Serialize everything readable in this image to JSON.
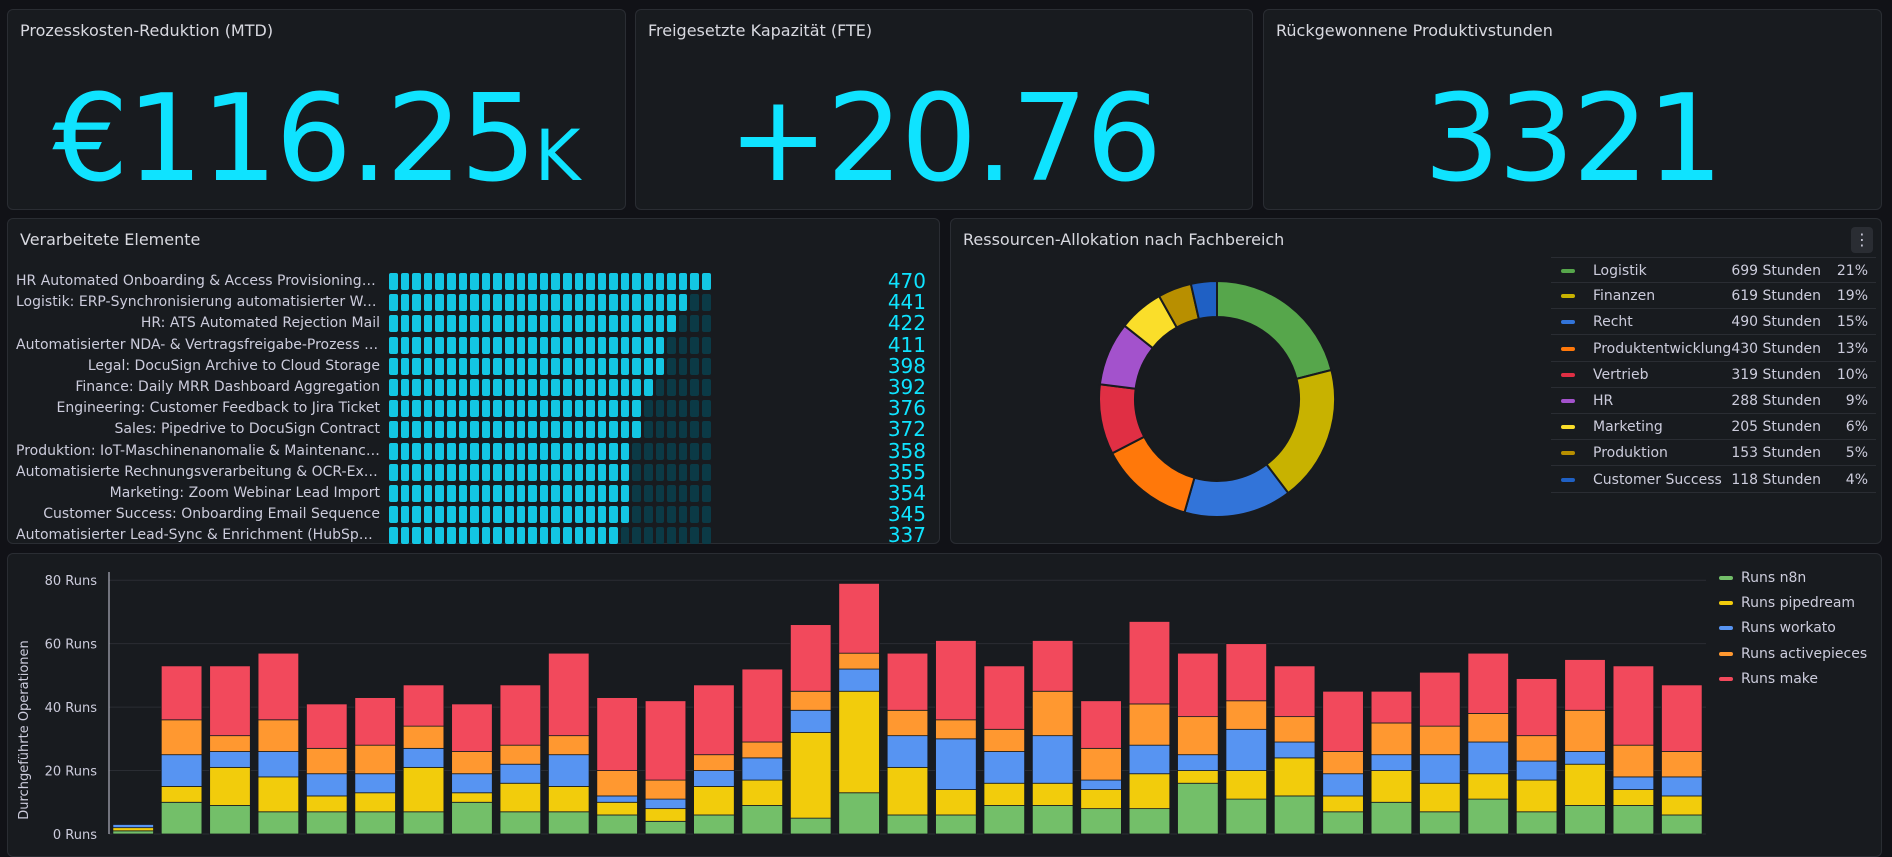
{
  "stats": [
    {
      "title": "Prozesskosten-Reduktion (MTD)",
      "value": "€116.25",
      "unit": "K"
    },
    {
      "title": "Freigesetzte Kapazität (FTE)",
      "value": "+20.76",
      "unit": ""
    },
    {
      "title": "Rückgewonnene Produktivstunden",
      "value": "3321",
      "unit": ""
    }
  ],
  "bargauge": {
    "title": "Verarbeitete Elemente",
    "max": 470,
    "items": [
      {
        "label": "HR Automated Onboarding & Access Provisioning (W...",
        "value": "470"
      },
      {
        "label": "Logistik: ERP-Synchronisierung automatisierter Ware...",
        "value": "441"
      },
      {
        "label": "HR: ATS Automated Rejection Mail",
        "value": "422"
      },
      {
        "label": "Automatisierter NDA- & Vertragsfreigabe-Prozess (D...",
        "value": "411"
      },
      {
        "label": "Legal: DocuSign Archive to Cloud Storage",
        "value": "398"
      },
      {
        "label": "Finance: Daily MRR Dashboard Aggregation",
        "value": "392"
      },
      {
        "label": "Engineering: Customer Feedback to Jira Ticket",
        "value": "376"
      },
      {
        "label": "Sales: Pipedrive to DocuSign Contract",
        "value": "372"
      },
      {
        "label": "Produktion: IoT-Maschinenanomalie & Maintenance-A...",
        "value": "358"
      },
      {
        "label": "Automatisierte Rechnungsverarbeitung & OCR-Extrah...",
        "value": "355"
      },
      {
        "label": "Marketing: Zoom Webinar Lead Import",
        "value": "354"
      },
      {
        "label": "Customer Success: Onboarding Email Sequence",
        "value": "345"
      },
      {
        "label": "Automatisierter Lead-Sync & Enrichment (HubSpot z...",
        "value": "337"
      }
    ]
  },
  "allocation": {
    "title": "Ressourcen-Allokation nach Fachbereich",
    "menu_icon": "more-vertical-icon",
    "items": [
      {
        "name": "Logistik",
        "value": "699 Stunden",
        "pct": "21%",
        "num": 699,
        "color": "#56a64b"
      },
      {
        "name": "Finanzen",
        "value": "619 Stunden",
        "pct": "19%",
        "num": 619,
        "color": "#c8b200"
      },
      {
        "name": "Recht",
        "value": "490 Stunden",
        "pct": "15%",
        "num": 490,
        "color": "#3274d9"
      },
      {
        "name": "Produktentwicklung",
        "value": "430 Stunden",
        "pct": "13%",
        "num": 430,
        "color": "#ff780a"
      },
      {
        "name": "Vertrieb",
        "value": "319 Stunden",
        "pct": "10%",
        "num": 319,
        "color": "#e02f44"
      },
      {
        "name": "HR",
        "value": "288 Stunden",
        "pct": "9%",
        "num": 288,
        "color": "#a352cc"
      },
      {
        "name": "Marketing",
        "value": "205 Stunden",
        "pct": "6%",
        "num": 205,
        "color": "#fade2a"
      },
      {
        "name": "Produktion",
        "value": "153 Stunden",
        "pct": "5%",
        "num": 153,
        "color": "#b88f00"
      },
      {
        "name": "Customer Success",
        "value": "118 Stunden",
        "pct": "4%",
        "num": 118,
        "color": "#1f60c4"
      }
    ]
  },
  "chart_data": {
    "type": "bar",
    "stacked": true,
    "ylabel": "Durchgeführte Operationen",
    "yticks": [
      "0 Runs",
      "20 Runs",
      "40 Runs",
      "60 Runs",
      "80 Runs"
    ],
    "ylim": [
      0,
      87
    ],
    "legend_position": "right",
    "series": [
      {
        "name": "Runs n8n",
        "color": "#73bf69",
        "values": [
          1,
          10,
          9,
          7,
          7,
          7,
          7,
          10,
          7,
          7,
          6,
          4,
          6,
          9,
          5,
          13,
          6,
          6,
          9,
          9,
          8,
          8,
          16,
          11,
          12,
          7,
          10,
          7,
          11,
          7,
          9,
          9,
          6
        ]
      },
      {
        "name": "Runs pipedream",
        "color": "#f2cc0c",
        "values": [
          1,
          5,
          12,
          11,
          5,
          6,
          14,
          3,
          9,
          8,
          4,
          4,
          9,
          8,
          27,
          32,
          15,
          8,
          7,
          7,
          6,
          11,
          4,
          9,
          12,
          5,
          10,
          9,
          8,
          10,
          13,
          5,
          6
        ]
      },
      {
        "name": "Runs workato",
        "color": "#5794f2",
        "values": [
          1,
          10,
          5,
          8,
          7,
          6,
          6,
          6,
          6,
          10,
          2,
          3,
          5,
          7,
          7,
          7,
          10,
          16,
          10,
          15,
          3,
          9,
          5,
          13,
          5,
          7,
          5,
          9,
          10,
          6,
          4,
          4,
          6
        ]
      },
      {
        "name": "Runs activepieces",
        "color": "#ff9830",
        "values": [
          0,
          11,
          5,
          10,
          8,
          9,
          7,
          7,
          6,
          6,
          8,
          6,
          5,
          5,
          6,
          5,
          8,
          6,
          7,
          14,
          10,
          13,
          12,
          9,
          8,
          7,
          10,
          9,
          9,
          8,
          13,
          10,
          8
        ]
      },
      {
        "name": "Runs make",
        "color": "#f2495c",
        "values": [
          0,
          17,
          22,
          21,
          14,
          15,
          13,
          15,
          19,
          26,
          23,
          25,
          22,
          23,
          21,
          22,
          18,
          25,
          20,
          16,
          15,
          26,
          20,
          18,
          16,
          19,
          10,
          17,
          19,
          18,
          16,
          25,
          21
        ]
      }
    ]
  }
}
